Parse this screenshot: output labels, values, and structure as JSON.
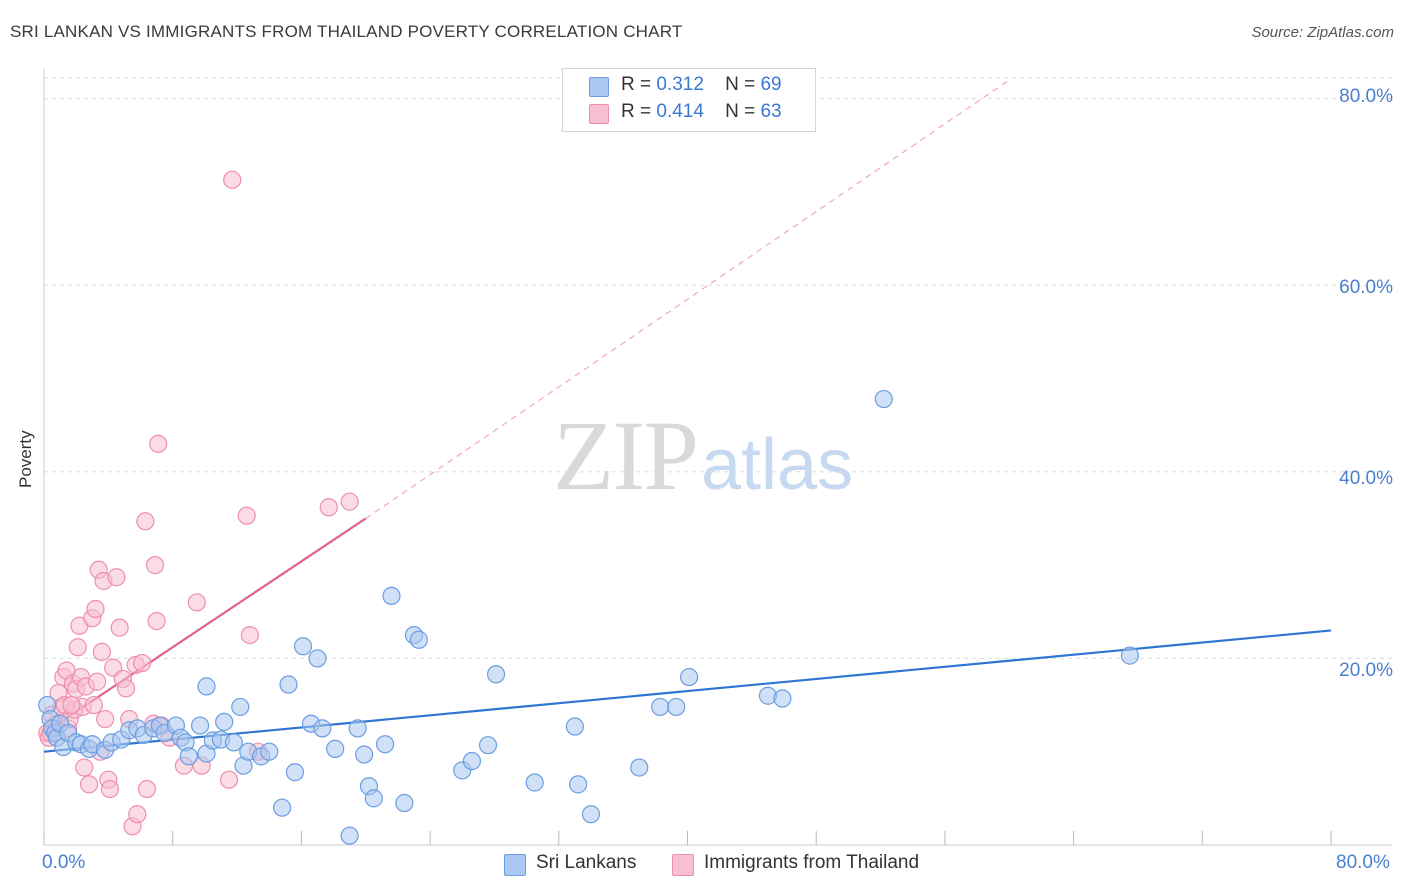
{
  "title": "SRI LANKAN VS IMMIGRANTS FROM THAILAND POVERTY CORRELATION CHART",
  "source": "Source: ZipAtlas.com",
  "watermark": {
    "zip": "ZIP",
    "atlas": "atlas"
  },
  "colors": {
    "blue_fill": "#a9c7f0",
    "blue_stroke": "#6b9ee0",
    "blue_line": "#2f76d2",
    "pink_fill": "#f7bfd0",
    "pink_stroke": "#ee8fad",
    "pink_line": "#e0628f",
    "grid": "#dcdcdc",
    "axis_text": "#4a7fd0"
  },
  "stats_legend": [
    {
      "r_label": "R =",
      "r_value": "0.312",
      "n_label": "N =",
      "n_value": "69",
      "color": "#a9c7f0",
      "border": "#6b9ee0"
    },
    {
      "r_label": "R =",
      "r_value": "0.414",
      "n_label": "N =",
      "n_value": "63",
      "color": "#f7bfd0",
      "border": "#ee8fad"
    }
  ],
  "bottom_legend": [
    {
      "label": "Sri Lankans",
      "color": "#a9c7f0",
      "border": "#6b9ee0"
    },
    {
      "label": "Immigrants from Thailand",
      "color": "#f7bfd0",
      "border": "#ee8fad"
    }
  ],
  "chart_data": {
    "type": "scatter",
    "title": "SRI LANKAN VS IMMIGRANTS FROM THAILAND POVERTY CORRELATION CHART",
    "xlabel": "",
    "ylabel": "Poverty",
    "xlim": [
      0,
      80
    ],
    "ylim": [
      0,
      82
    ],
    "x_tick_labels": [
      "0.0%",
      "80.0%"
    ],
    "y_ticks": [
      20,
      40,
      60,
      80
    ],
    "y_tick_labels": [
      "20.0%",
      "40.0%",
      "60.0%",
      "80.0%"
    ],
    "grid": true,
    "legend_position": "top-center",
    "series": [
      {
        "name": "Sri Lankans",
        "r": 0.312,
        "n": 69,
        "trend": {
          "x0": 0,
          "y0": 10.0,
          "x1": 80,
          "y1": 23.0,
          "dashed_extension": false
        },
        "points": [
          [
            0.2,
            15.0
          ],
          [
            0.4,
            13.5
          ],
          [
            0.5,
            12.5
          ],
          [
            0.7,
            12.0
          ],
          [
            0.8,
            11.5
          ],
          [
            1.0,
            13.0
          ],
          [
            1.2,
            10.5
          ],
          [
            1.5,
            12.0
          ],
          [
            2.0,
            11.0
          ],
          [
            2.3,
            10.8
          ],
          [
            2.8,
            10.3
          ],
          [
            3.0,
            10.8
          ],
          [
            3.8,
            10.2
          ],
          [
            4.2,
            11.0
          ],
          [
            4.8,
            11.3
          ],
          [
            5.3,
            12.3
          ],
          [
            5.8,
            12.5
          ],
          [
            6.2,
            11.8
          ],
          [
            6.8,
            12.5
          ],
          [
            7.2,
            12.8
          ],
          [
            7.5,
            12.0
          ],
          [
            8.2,
            12.8
          ],
          [
            8.5,
            11.5
          ],
          [
            8.8,
            11.0
          ],
          [
            9.0,
            9.5
          ],
          [
            9.7,
            12.8
          ],
          [
            10.1,
            9.8
          ],
          [
            10.1,
            17.0
          ],
          [
            10.5,
            11.2
          ],
          [
            11.0,
            11.3
          ],
          [
            11.2,
            13.2
          ],
          [
            11.8,
            11.0
          ],
          [
            12.2,
            14.8
          ],
          [
            12.4,
            8.5
          ],
          [
            12.7,
            10.0
          ],
          [
            13.5,
            9.5
          ],
          [
            14.0,
            10.0
          ],
          [
            14.8,
            4.0
          ],
          [
            15.2,
            17.2
          ],
          [
            15.6,
            7.8
          ],
          [
            16.1,
            21.3
          ],
          [
            16.6,
            13.0
          ],
          [
            17.0,
            20.0
          ],
          [
            17.3,
            12.5
          ],
          [
            18.1,
            10.3
          ],
          [
            19.0,
            1.0
          ],
          [
            19.5,
            12.5
          ],
          [
            19.9,
            9.7
          ],
          [
            20.2,
            6.3
          ],
          [
            20.5,
            5.0
          ],
          [
            21.2,
            10.8
          ],
          [
            21.6,
            26.7
          ],
          [
            22.4,
            4.5
          ],
          [
            23.0,
            22.5
          ],
          [
            23.3,
            22.0
          ],
          [
            26.0,
            8.0
          ],
          [
            26.6,
            9.0
          ],
          [
            27.6,
            10.7
          ],
          [
            28.1,
            18.3
          ],
          [
            30.5,
            6.7
          ],
          [
            33.0,
            12.7
          ],
          [
            33.2,
            6.5
          ],
          [
            34.0,
            3.3
          ],
          [
            37.0,
            8.3
          ],
          [
            38.3,
            14.8
          ],
          [
            39.3,
            14.8
          ],
          [
            40.1,
            18.0
          ],
          [
            45.0,
            16.0
          ],
          [
            45.9,
            15.7
          ],
          [
            52.2,
            47.8
          ],
          [
            67.5,
            20.3
          ]
        ]
      },
      {
        "name": "Immigrants from Thailand",
        "r": 0.414,
        "n": 63,
        "trend": {
          "x0": 0,
          "y0": 12.0,
          "x1": 20,
          "y1": 35.0,
          "dashed_to": [
            60,
            82
          ],
          "dashed_extension": true
        },
        "points": [
          [
            0.2,
            12.0
          ],
          [
            0.3,
            11.5
          ],
          [
            0.5,
            14.0
          ],
          [
            0.6,
            12.5
          ],
          [
            0.8,
            13.0
          ],
          [
            0.9,
            16.3
          ],
          [
            1.1,
            14.8
          ],
          [
            1.2,
            18.0
          ],
          [
            1.3,
            15.0
          ],
          [
            1.4,
            18.7
          ],
          [
            1.5,
            12.5
          ],
          [
            1.6,
            13.5
          ],
          [
            1.8,
            17.3
          ],
          [
            1.9,
            14.5
          ],
          [
            2.0,
            16.7
          ],
          [
            2.1,
            21.2
          ],
          [
            2.2,
            23.5
          ],
          [
            2.3,
            18.0
          ],
          [
            2.4,
            14.8
          ],
          [
            2.5,
            8.3
          ],
          [
            2.6,
            17.0
          ],
          [
            2.8,
            6.5
          ],
          [
            3.0,
            24.3
          ],
          [
            3.1,
            15.0
          ],
          [
            3.2,
            25.3
          ],
          [
            3.3,
            17.5
          ],
          [
            3.4,
            29.5
          ],
          [
            3.5,
            10.0
          ],
          [
            3.6,
            20.7
          ],
          [
            3.7,
            28.3
          ],
          [
            3.8,
            13.5
          ],
          [
            4.0,
            7.0
          ],
          [
            4.1,
            6.0
          ],
          [
            4.3,
            19.0
          ],
          [
            4.5,
            28.7
          ],
          [
            4.7,
            23.3
          ],
          [
            4.9,
            17.8
          ],
          [
            5.1,
            16.8
          ],
          [
            5.3,
            13.5
          ],
          [
            5.5,
            2.0
          ],
          [
            5.7,
            19.3
          ],
          [
            5.8,
            3.3
          ],
          [
            6.1,
            19.5
          ],
          [
            6.3,
            34.7
          ],
          [
            6.4,
            6.0
          ],
          [
            6.8,
            13.0
          ],
          [
            6.9,
            30.0
          ],
          [
            7.0,
            24.0
          ],
          [
            7.1,
            43.0
          ],
          [
            7.3,
            12.8
          ],
          [
            7.8,
            11.5
          ],
          [
            8.7,
            8.5
          ],
          [
            9.5,
            26.0
          ],
          [
            9.8,
            8.5
          ],
          [
            11.5,
            7.0
          ],
          [
            11.7,
            71.3
          ],
          [
            12.6,
            35.3
          ],
          [
            12.8,
            22.5
          ],
          [
            13.3,
            10.0
          ],
          [
            17.7,
            36.2
          ],
          [
            19.0,
            36.8
          ],
          [
            0.4,
            12.0
          ],
          [
            1.7,
            15.0
          ]
        ]
      }
    ]
  }
}
